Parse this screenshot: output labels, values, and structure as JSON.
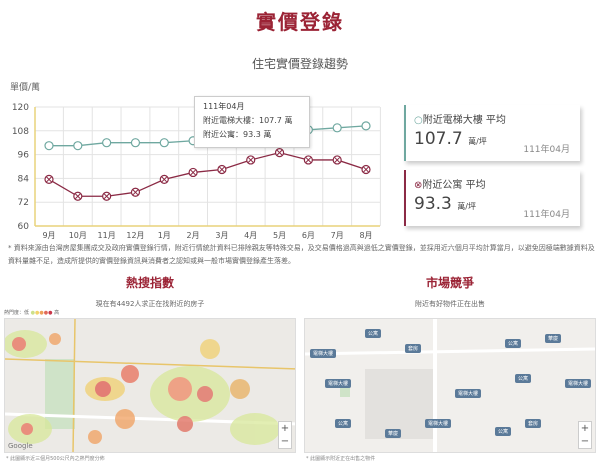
{
  "header": {
    "title": "實價登錄",
    "subtitle": "住宅實價登錄趨勢"
  },
  "chart_data": {
    "type": "line",
    "ylabel": "單價/萬",
    "categories": [
      "9月",
      "10月",
      "11月",
      "12月",
      "1月",
      "2月",
      "3月",
      "4月",
      "5月",
      "6月",
      "7月",
      "8月"
    ],
    "ylim": [
      60,
      120
    ],
    "yticks": [
      60,
      72,
      84,
      96,
      108,
      120
    ],
    "grid": true,
    "series": [
      {
        "name": "附近電梯大樓",
        "color": "#6fa8a0",
        "marker": "circle",
        "values": [
          100.5,
          100.5,
          102,
          102,
          102,
          103,
          104,
          107.7,
          108,
          108.5,
          109.5,
          110.5
        ]
      },
      {
        "name": "附近公寓",
        "color": "#8b2a45",
        "marker": "circle-x",
        "values": [
          83.5,
          75,
          75,
          77,
          83.5,
          87,
          88.5,
          93.3,
          97,
          93.3,
          93.3,
          88.5
        ]
      }
    ],
    "tooltip": {
      "date": "111年04月",
      "line1": "附近電梯大樓：107.7 萬",
      "line2": "附近公寓：93.3 萬"
    }
  },
  "cards": [
    {
      "label": "附近電梯大樓 平均",
      "value": "107.7",
      "unit": "萬/坪",
      "date": "111年04月",
      "color": "#6fa8a0"
    },
    {
      "label": "附近公寓 平均",
      "value": "93.3",
      "unit": "萬/坪",
      "date": "111年04月",
      "color": "#8b2a45"
    }
  ],
  "note": "* 資料來源由台灣房屋集團成交及政府實價登錄行情，附近行情統計資料已排除親友等特殊交易，及交易價格過高與過低之實價登錄，並採用近六個月平均計算當月，以避免因極端數據資料及資料量雜不足，造成所提供的實價登錄資訊與消費者之認知或與一般市場實價登錄產生落差。",
  "heat": {
    "title": "熱搜指數",
    "caption": "現在有4492人求正在找附近的房子",
    "legend_low": "熱門度：低",
    "legend_high": "高",
    "footnote": "* 此圖顯示近三個月500公尺內之熱門度分佈",
    "google": "Google"
  },
  "market": {
    "title": "市場競爭",
    "caption": "附近有好物件正在出售",
    "footnote": "* 此圖顯示附近正在出售之物件",
    "pins": [
      "電梯大樓",
      "公寓",
      "套房",
      "電梯大樓",
      "公寓",
      "華廈",
      "電梯大樓",
      "公寓",
      "套房",
      "公寓",
      "電梯大樓",
      "華廈",
      "公寓",
      "電梯大樓"
    ]
  }
}
